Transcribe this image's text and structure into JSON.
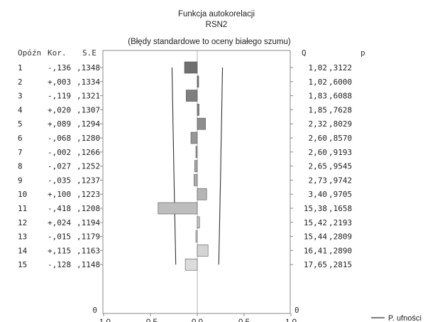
{
  "chart_data": {
    "type": "bar",
    "orientation": "horizontal",
    "title": "Funkcja autokorelacji",
    "subtitle": "RSN2",
    "note": "(Błędy standardowe to oceny białego szumu)",
    "headers": {
      "lag": "Opóźn",
      "corr": "Kor.",
      "se": "S.E",
      "q": "Q",
      "p": "p"
    },
    "xlim": [
      -1.0,
      1.0
    ],
    "x_ticks": [
      "-1.0",
      "-0.5",
      "0.0",
      "0.5",
      "1.0"
    ],
    "legend": "P. ufności",
    "legend_position": "bottom-right",
    "zero_label_left": "0",
    "zero_label_right": "0",
    "rows": [
      {
        "lag": "1",
        "corr_label": "-,136",
        "se_label": ",1348",
        "q_label": "1,02",
        "p_label": ",3122",
        "value": -0.136,
        "se": 0.1348
      },
      {
        "lag": "2",
        "corr_label": "+,003",
        "se_label": ",1334",
        "q_label": "1,02",
        "p_label": ",6000",
        "value": 0.003,
        "se": 0.1334
      },
      {
        "lag": "3",
        "corr_label": "-,119",
        "se_label": ",1321",
        "q_label": "1,83",
        "p_label": ",6088",
        "value": -0.119,
        "se": 0.1321
      },
      {
        "lag": "4",
        "corr_label": "+,020",
        "se_label": ",1307",
        "q_label": "1,85",
        "p_label": ",7628",
        "value": 0.02,
        "se": 0.1307
      },
      {
        "lag": "5",
        "corr_label": "+,089",
        "se_label": ",1294",
        "q_label": "2,32",
        "p_label": ",8029",
        "value": 0.089,
        "se": 0.1294
      },
      {
        "lag": "6",
        "corr_label": "-,068",
        "se_label": ",1280",
        "q_label": "2,60",
        "p_label": ",8570",
        "value": -0.068,
        "se": 0.128
      },
      {
        "lag": "7",
        "corr_label": "-,002",
        "se_label": ",1266",
        "q_label": "2,60",
        "p_label": ",9193",
        "value": -0.002,
        "se": 0.1266
      },
      {
        "lag": "8",
        "corr_label": "-,027",
        "se_label": ",1252",
        "q_label": "2,65",
        "p_label": ",9545",
        "value": -0.027,
        "se": 0.1252
      },
      {
        "lag": "9",
        "corr_label": "-,035",
        "se_label": ",1237",
        "q_label": "2,73",
        "p_label": ",9742",
        "value": -0.035,
        "se": 0.1237
      },
      {
        "lag": "10",
        "corr_label": "+,100",
        "se_label": ",1223",
        "q_label": "3,40",
        "p_label": ",9705",
        "value": 0.1,
        "se": 0.1223
      },
      {
        "lag": "11",
        "corr_label": "-,418",
        "se_label": ",1208",
        "q_label": "15,38",
        "p_label": ",1658",
        "value": -0.418,
        "se": 0.1208
      },
      {
        "lag": "12",
        "corr_label": "+,024",
        "se_label": ",1194",
        "q_label": "15,42",
        "p_label": ",2193",
        "value": 0.024,
        "se": 0.1194
      },
      {
        "lag": "13",
        "corr_label": "-,015",
        "se_label": ",1179",
        "q_label": "15,44",
        "p_label": ",2809",
        "value": -0.015,
        "se": 0.1179
      },
      {
        "lag": "14",
        "corr_label": "+,115",
        "se_label": ",1163",
        "q_label": "16,41",
        "p_label": ",2890",
        "value": 0.115,
        "se": 0.1163
      },
      {
        "lag": "15",
        "corr_label": "-,128",
        "se_label": ",1148",
        "q_label": "17,65",
        "p_label": ",2815",
        "value": -0.128,
        "se": 0.1148
      }
    ],
    "colors": {
      "bar_dark": "#6f6f6f",
      "bar_light": "#dcdcdc",
      "line": "#303030",
      "text": "#222222",
      "frame": "#888888"
    }
  }
}
